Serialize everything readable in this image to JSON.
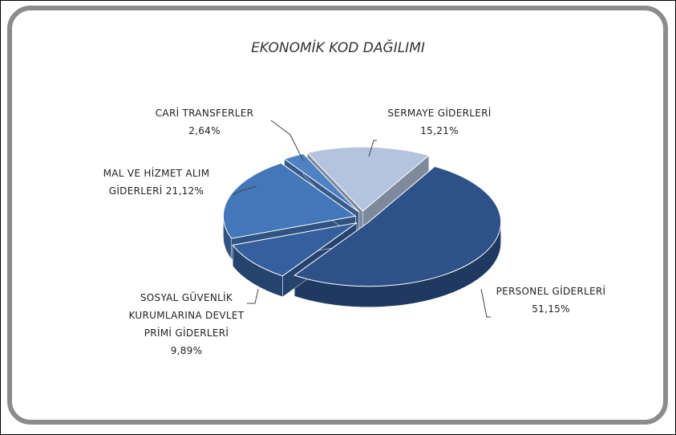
{
  "chart_data": {
    "type": "pie",
    "title": "EKONOMİK KOD DAĞILIMI",
    "categories": [
      "SERMAYE GİDERLERİ",
      "PERSONEL GİDERLERİ",
      "SOSYAL GÜVENLİK KURUMLARINA DEVLET PRİMİ GİDERLERİ",
      "MAL VE HİZMET ALIM GİDERLERİ",
      "CARİ TRANSFERLER"
    ],
    "values": [
      15.21,
      51.15,
      9.89,
      21.12,
      2.64
    ],
    "value_labels": [
      "15,21%",
      "51,15%",
      "9,89%",
      "21,12%",
      "2,64%"
    ],
    "colors": [
      "#b4c4de",
      "#2e5189",
      "#35609e",
      "#4477b9",
      "#4f82c4"
    ]
  }
}
